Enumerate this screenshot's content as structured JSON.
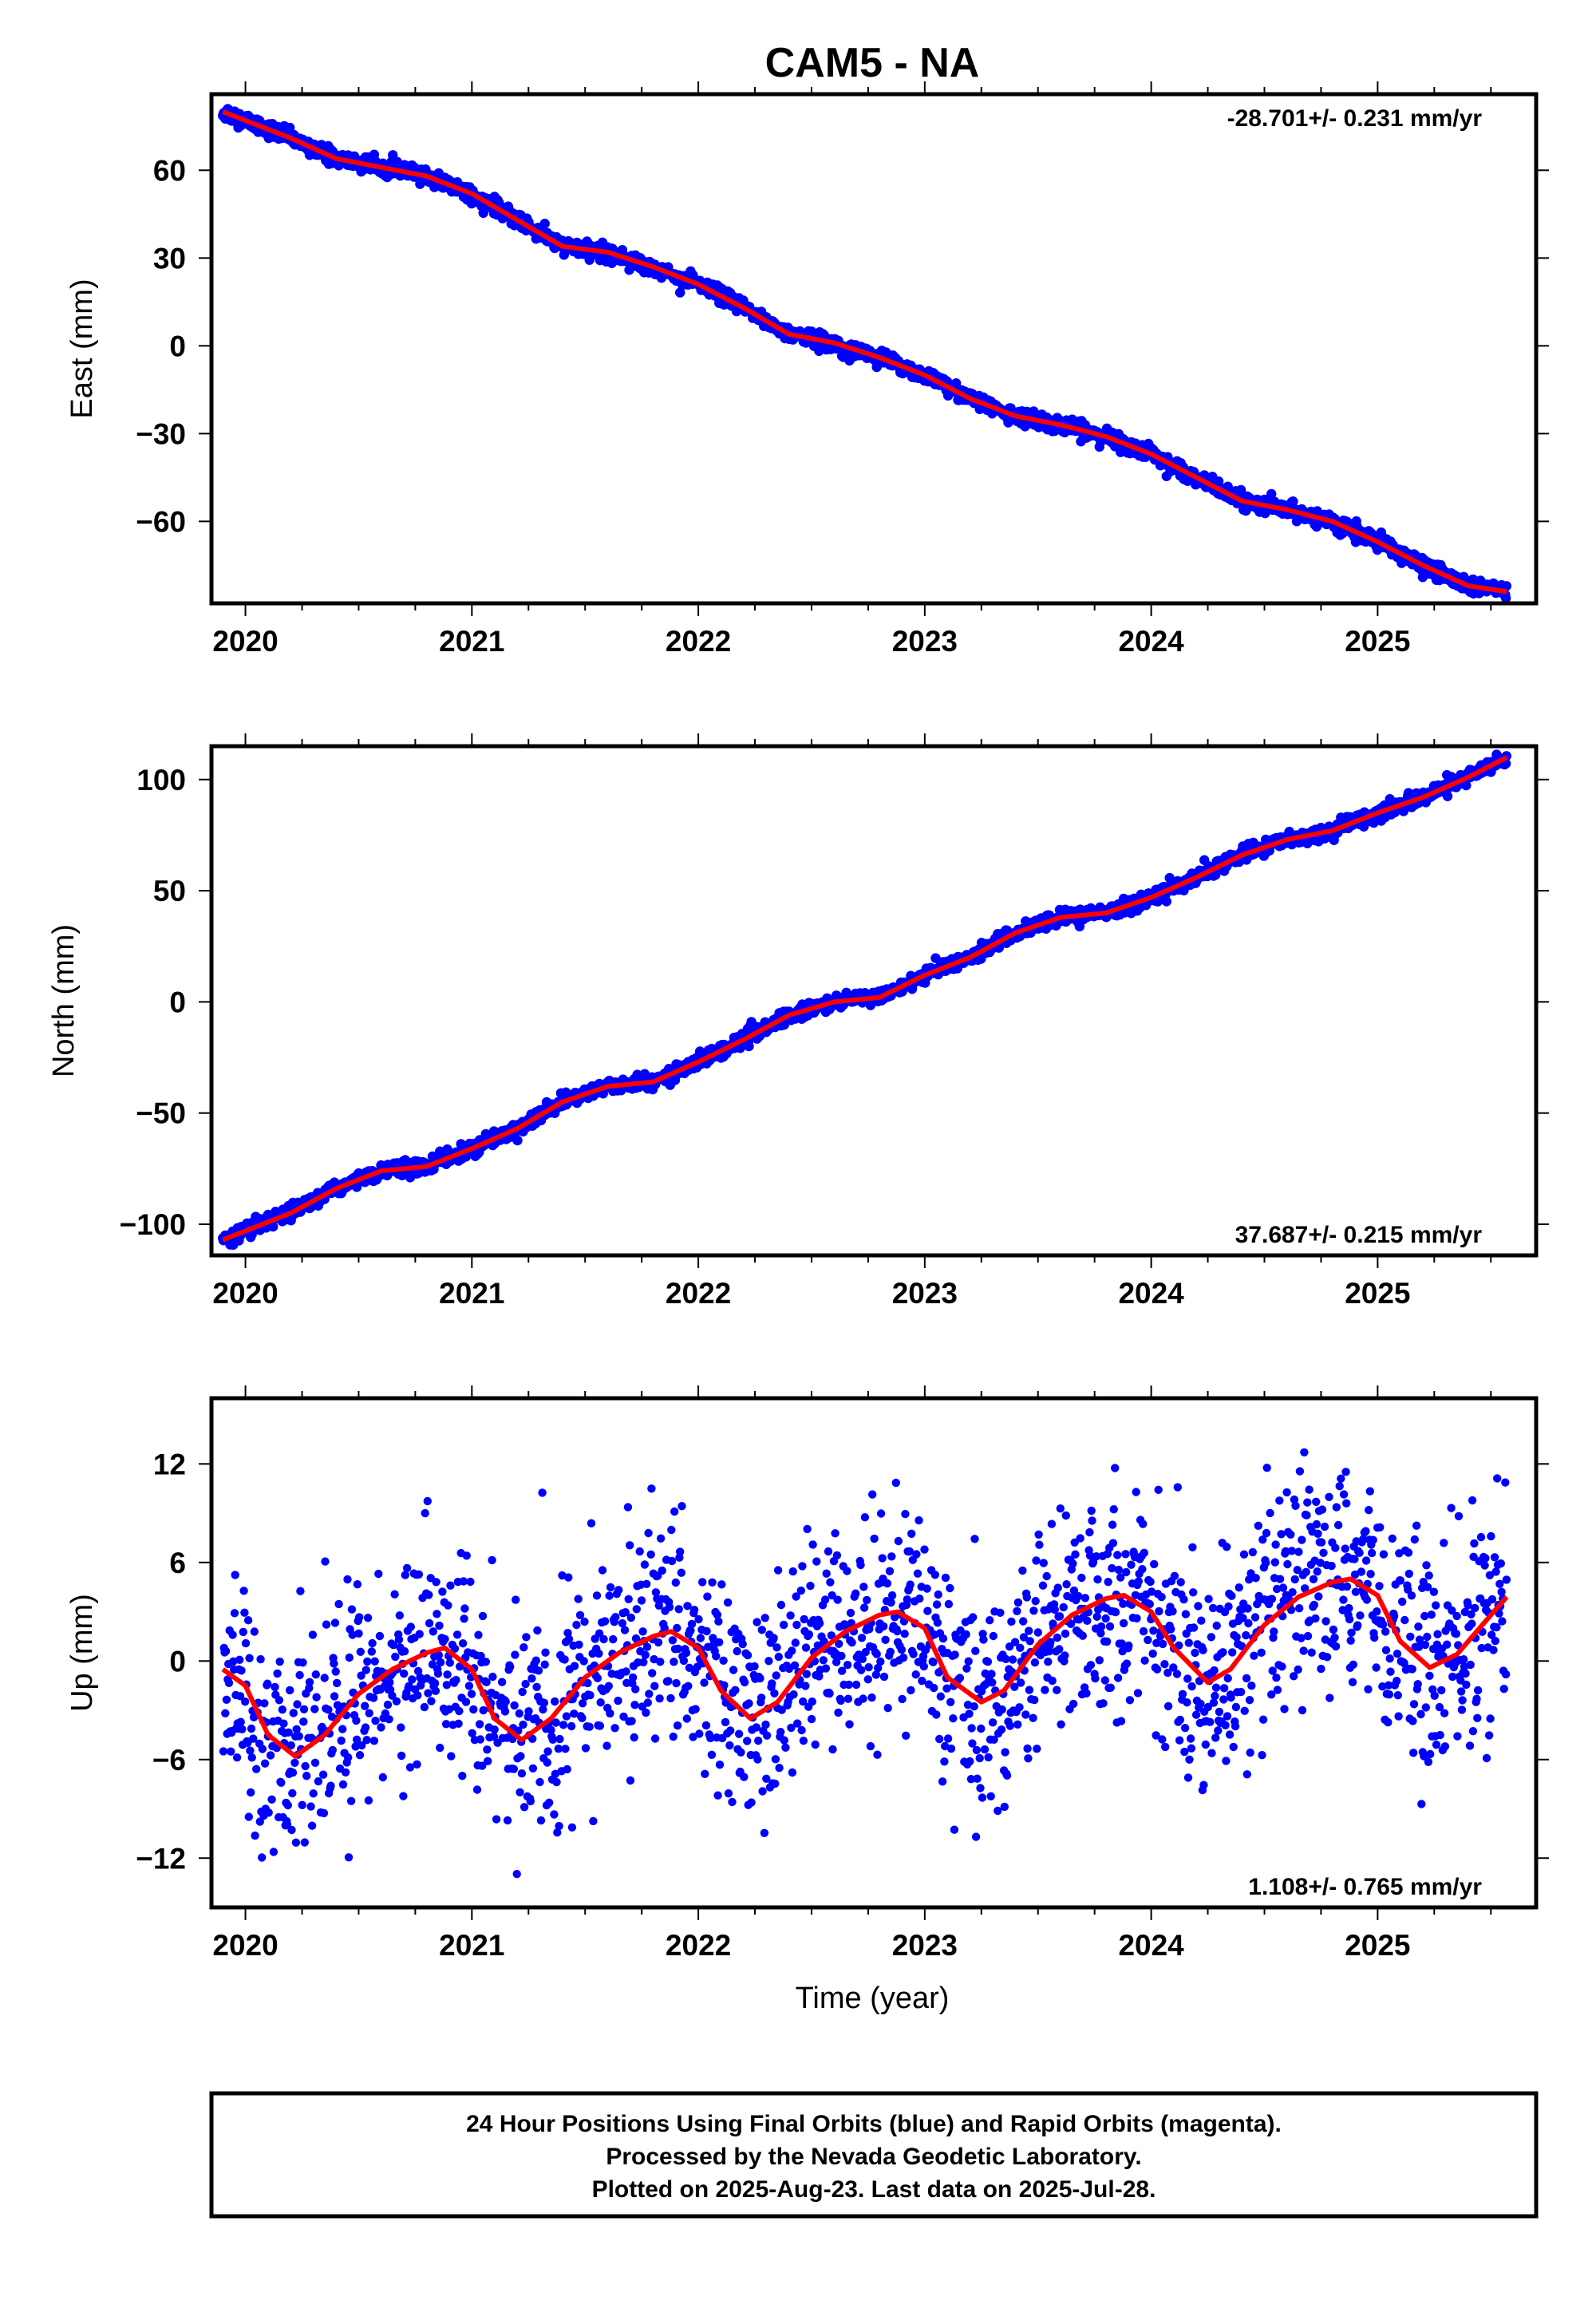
{
  "figure": {
    "title": "CAM5 - NA",
    "footer": [
      "24 Hour Positions Using Final Orbits (blue) and Rapid Orbits (magenta).",
      "Processed by the Nevada Geodetic Laboratory.",
      "Plotted on 2025-Aug-23. Last data on 2025-Jul-28."
    ]
  },
  "colors": {
    "data_points": "#0000ff",
    "model_fit": "#ff0000",
    "frame": "#000000"
  },
  "chart_data": [
    {
      "type": "scatter",
      "ylabel": "East (mm)",
      "xlabel": "",
      "rate_label": "-28.701+/- 0.231 mm/yr",
      "xlim": [
        2019.85,
        2025.7
      ],
      "ylim": [
        -88,
        86
      ],
      "xticks": [
        2020,
        2021,
        2022,
        2023,
        2024,
        2025
      ],
      "xtick_labels": [
        "2020",
        "2021",
        "2022",
        "2023",
        "2024",
        "2025"
      ],
      "yticks": [
        -60,
        -30,
        0,
        30,
        60
      ],
      "ytick_labels": [
        "−60",
        "−30",
        "0",
        "30",
        "60"
      ],
      "series": [
        {
          "role": "points",
          "noise_mm": 1.3
        },
        {
          "role": "fit",
          "x": [
            2019.9,
            2020.0,
            2020.2,
            2020.4,
            2020.6,
            2020.8,
            2021.0,
            2021.2,
            2021.4,
            2021.6,
            2021.8,
            2022.0,
            2022.2,
            2022.4,
            2022.6,
            2022.8,
            2023.0,
            2023.2,
            2023.4,
            2023.6,
            2023.8,
            2024.0,
            2024.2,
            2024.4,
            2024.6,
            2024.8,
            2025.0,
            2025.2,
            2025.4,
            2025.57
          ],
          "y": [
            80,
            77,
            71,
            64,
            61,
            58,
            52,
            43,
            34,
            32,
            27,
            21,
            13,
            4,
            1,
            -4,
            -10,
            -18,
            -24,
            -27,
            -31,
            -37,
            -45,
            -53,
            -56,
            -60,
            -67,
            -75,
            -82,
            -84
          ]
        }
      ]
    },
    {
      "type": "scatter",
      "ylabel": "North (mm)",
      "xlabel": "",
      "rate_label": "37.687+/- 0.215 mm/yr",
      "xlim": [
        2019.85,
        2025.7
      ],
      "ylim": [
        -114,
        115
      ],
      "xticks": [
        2020,
        2021,
        2022,
        2023,
        2024,
        2025
      ],
      "xtick_labels": [
        "2020",
        "2021",
        "2022",
        "2023",
        "2024",
        "2025"
      ],
      "yticks": [
        -100,
        -50,
        0,
        50,
        100
      ],
      "ytick_labels": [
        "−100",
        "−50",
        "0",
        "50",
        "100"
      ],
      "series": [
        {
          "role": "points",
          "noise_mm": 1.6
        },
        {
          "role": "fit",
          "x": [
            2019.9,
            2020.0,
            2020.2,
            2020.4,
            2020.6,
            2020.8,
            2021.0,
            2021.2,
            2021.4,
            2021.6,
            2021.8,
            2022.0,
            2022.2,
            2022.4,
            2022.6,
            2022.8,
            2023.0,
            2023.2,
            2023.4,
            2023.6,
            2023.8,
            2024.0,
            2024.2,
            2024.4,
            2024.6,
            2024.8,
            2025.0,
            2025.2,
            2025.4,
            2025.57
          ],
          "y": [
            -107,
            -103,
            -95,
            -84,
            -76,
            -74,
            -66,
            -57,
            -45,
            -38,
            -36,
            -27,
            -17,
            -6,
            0,
            2,
            12,
            20,
            31,
            38,
            40,
            47,
            56,
            66,
            73,
            77,
            85,
            92,
            101,
            110
          ]
        }
      ]
    },
    {
      "type": "scatter",
      "ylabel": "Up (mm)",
      "xlabel": "Time (year)",
      "rate_label": "1.108+/- 0.765 mm/yr",
      "xlim": [
        2019.85,
        2025.7
      ],
      "ylim": [
        -15,
        16
      ],
      "xticks": [
        2020,
        2021,
        2022,
        2023,
        2024,
        2025
      ],
      "xtick_labels": [
        "2020",
        "2021",
        "2022",
        "2023",
        "2024",
        "2025"
      ],
      "yticks": [
        -12,
        -6,
        0,
        6,
        12
      ],
      "ytick_labels": [
        "−12",
        "−6",
        "0",
        "6",
        "12"
      ],
      "series": [
        {
          "role": "points",
          "noise_mm": 3.3
        },
        {
          "role": "fit",
          "x": [
            2019.9,
            2020.0,
            2020.1,
            2020.22,
            2020.35,
            2020.5,
            2020.65,
            2020.8,
            2020.88,
            2021.0,
            2021.1,
            2021.22,
            2021.35,
            2021.5,
            2021.65,
            2021.8,
            2021.88,
            2022.0,
            2022.1,
            2022.23,
            2022.35,
            2022.5,
            2022.65,
            2022.8,
            2022.88,
            2023.0,
            2023.1,
            2023.25,
            2023.35,
            2023.5,
            2023.65,
            2023.8,
            2023.88,
            2024.0,
            2024.1,
            2024.25,
            2024.35,
            2024.5,
            2024.65,
            2024.8,
            2024.88,
            2025.0,
            2025.1,
            2025.23,
            2025.35,
            2025.5,
            2025.57
          ],
          "y": [
            -0.5,
            -1.5,
            -4.5,
            -5.8,
            -4.5,
            -2,
            -0.5,
            0.5,
            0.8,
            -0.5,
            -3.5,
            -4.8,
            -3.5,
            -1,
            0.5,
            1.5,
            1.8,
            0.8,
            -1.8,
            -3.5,
            -2.5,
            0.2,
            1.8,
            2.8,
            3,
            2,
            -1,
            -2.5,
            -1.8,
            1,
            2.8,
            3.8,
            4,
            3,
            0.8,
            -1.3,
            -0.5,
            2.2,
            3.9,
            4.8,
            5,
            4,
            1.2,
            -0.4,
            0.4,
            2.8,
            3.9
          ]
        }
      ]
    }
  ]
}
